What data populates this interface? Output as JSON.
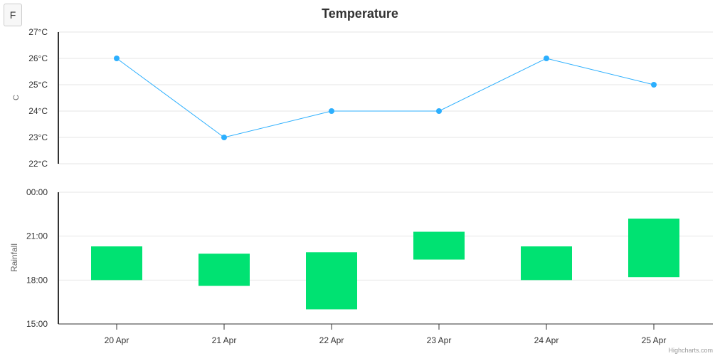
{
  "button": {
    "label": "F"
  },
  "credits": "Highcharts.com",
  "chart_data": [
    {
      "type": "line",
      "title": "Temperature",
      "ylabel": "C",
      "ylim": [
        22,
        27
      ],
      "yticks": [
        "22°C",
        "23°C",
        "24°C",
        "25°C",
        "26°C",
        "27°C"
      ],
      "categories": [
        "20 Apr",
        "21 Apr",
        "22 Apr",
        "23 Apr",
        "24 Apr",
        "25 Apr"
      ],
      "series": [
        {
          "name": "Temperature",
          "values": [
            26,
            23,
            24,
            24,
            26,
            25
          ],
          "color": "#2caffe"
        }
      ]
    },
    {
      "type": "bar",
      "subtype": "columnrange",
      "ylabel": "Rainfall",
      "ylim": [
        15,
        24
      ],
      "yticks": [
        "15:00",
        "18:00",
        "21:00",
        "00:00"
      ],
      "categories": [
        "20 Apr",
        "21 Apr",
        "22 Apr",
        "23 Apr",
        "24 Apr",
        "25 Apr"
      ],
      "series": [
        {
          "name": "Rainfall",
          "color": "#00e272",
          "low": [
            18.0,
            17.6,
            16.0,
            19.4,
            18.0,
            18.2
          ],
          "high": [
            20.3,
            19.8,
            19.9,
            21.3,
            20.3,
            22.2
          ]
        }
      ]
    }
  ]
}
